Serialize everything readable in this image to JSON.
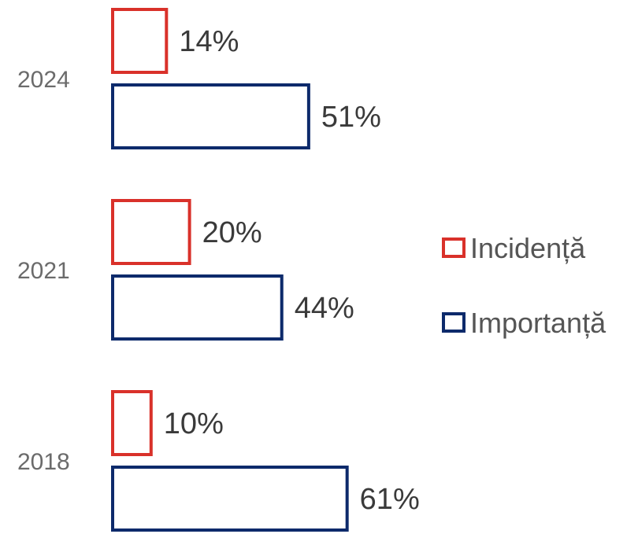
{
  "chart_data": {
    "type": "bar",
    "orientation": "horizontal",
    "categories": [
      "2024",
      "2021",
      "2018"
    ],
    "series": [
      {
        "name": "Incidență",
        "values": [
          14,
          20,
          10
        ],
        "color": "#d9312a"
      },
      {
        "name": "Importanță",
        "values": [
          51,
          44,
          61
        ],
        "color": "#0d2a6b"
      }
    ],
    "value_suffix": "%",
    "legend_position": "right",
    "grid": false,
    "bar_style": "outline"
  }
}
